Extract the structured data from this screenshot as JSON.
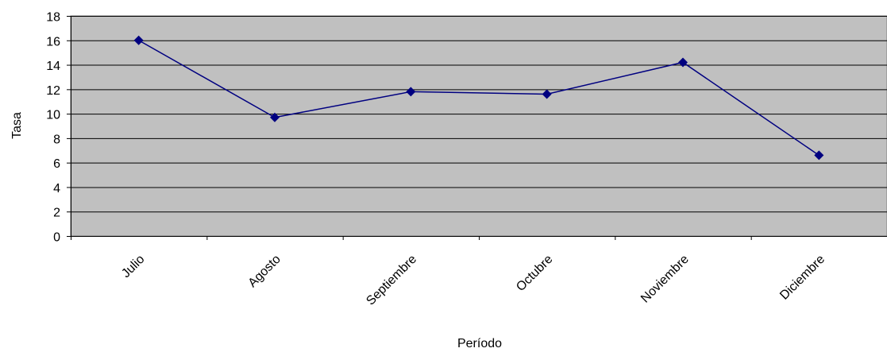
{
  "chart_data": {
    "type": "line",
    "xlabel": "Período",
    "ylabel": "Tasa",
    "categories": [
      "Julio",
      "Agosto",
      "Septiembre",
      "Octubre",
      "Noviembre",
      "Diciembre"
    ],
    "series": [
      {
        "values": [
          16.0,
          9.7,
          11.8,
          11.6,
          14.2,
          6.6
        ]
      }
    ],
    "ylim": [
      0,
      18
    ],
    "yticks": [
      0,
      2,
      4,
      6,
      8,
      10,
      12,
      14,
      16,
      18
    ],
    "grid": true,
    "legend": "none",
    "colors": {
      "plot_background": "#c0c0c0",
      "line": "#000080",
      "marker": "#000080",
      "gridline": "#000000"
    }
  }
}
